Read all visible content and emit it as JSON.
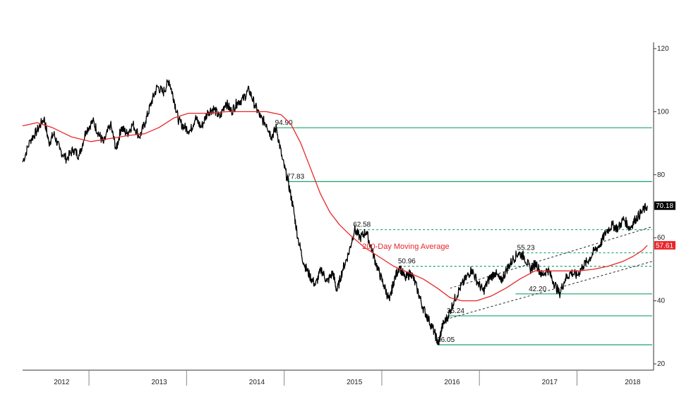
{
  "chart_data": {
    "type": "line",
    "title": "",
    "xlabel": "",
    "ylabel": "",
    "ylim": [
      18,
      122
    ],
    "y_ticks": [
      20,
      40,
      60,
      80,
      100,
      120
    ],
    "y_axis_side": "right",
    "grid": false,
    "x_range": [
      2011.8,
      2018.25
    ],
    "year_labels": [
      "2012",
      "2013",
      "2014",
      "2015",
      "2016",
      "2017",
      "2018"
    ],
    "year_label_positions": [
      2012.2,
      2013.2,
      2014.2,
      2015.2,
      2016.2,
      2017.2,
      2018.05
    ],
    "year_separators": [
      2012.48,
      2013.48,
      2014.48,
      2015.48,
      2016.48,
      2017.48
    ],
    "series": [
      {
        "kind": "price",
        "color": "#000000",
        "points": [
          [
            2011.8,
            84
          ],
          [
            2011.88,
            91
          ],
          [
            2011.95,
            94
          ],
          [
            2012.02,
            98
          ],
          [
            2012.07,
            90
          ],
          [
            2012.12,
            93
          ],
          [
            2012.18,
            88
          ],
          [
            2012.25,
            85
          ],
          [
            2012.32,
            88
          ],
          [
            2012.38,
            86
          ],
          [
            2012.45,
            94
          ],
          [
            2012.52,
            97
          ],
          [
            2012.58,
            93
          ],
          [
            2012.63,
            90
          ],
          [
            2012.7,
            96
          ],
          [
            2012.76,
            88
          ],
          [
            2012.81,
            95
          ],
          [
            2012.87,
            93
          ],
          [
            2012.93,
            96
          ],
          [
            2013.0,
            92
          ],
          [
            2013.06,
            97
          ],
          [
            2013.12,
            103
          ],
          [
            2013.18,
            108
          ],
          [
            2013.24,
            106
          ],
          [
            2013.3,
            110
          ],
          [
            2013.35,
            104
          ],
          [
            2013.4,
            97
          ],
          [
            2013.46,
            95
          ],
          [
            2013.52,
            94
          ],
          [
            2013.57,
            98
          ],
          [
            2013.63,
            95
          ],
          [
            2013.7,
            100
          ],
          [
            2013.76,
            101
          ],
          [
            2013.82,
            98
          ],
          [
            2013.88,
            103
          ],
          [
            2013.94,
            100
          ],
          [
            2014.0,
            103
          ],
          [
            2014.06,
            104
          ],
          [
            2014.12,
            107
          ],
          [
            2014.18,
            102
          ],
          [
            2014.24,
            98
          ],
          [
            2014.3,
            96
          ],
          [
            2014.35,
            92
          ],
          [
            2014.4,
            94.9
          ],
          [
            2014.46,
            85
          ],
          [
            2014.52,
            77.83
          ],
          [
            2014.57,
            70
          ],
          [
            2014.62,
            60
          ],
          [
            2014.68,
            52
          ],
          [
            2014.74,
            48
          ],
          [
            2014.8,
            45
          ],
          [
            2014.86,
            50
          ],
          [
            2014.92,
            46
          ],
          [
            2014.98,
            49
          ],
          [
            2015.02,
            43
          ],
          [
            2015.08,
            50
          ],
          [
            2015.14,
            55
          ],
          [
            2015.2,
            62.58
          ],
          [
            2015.26,
            60
          ],
          [
            2015.32,
            62
          ],
          [
            2015.38,
            56
          ],
          [
            2015.44,
            50
          ],
          [
            2015.5,
            45
          ],
          [
            2015.56,
            40
          ],
          [
            2015.6,
            46
          ],
          [
            2015.66,
            50.96
          ],
          [
            2015.72,
            47
          ],
          [
            2015.78,
            49
          ],
          [
            2015.84,
            44
          ],
          [
            2015.9,
            38
          ],
          [
            2015.96,
            34
          ],
          [
            2016.02,
            30
          ],
          [
            2016.06,
            26.05
          ],
          [
            2016.1,
            32
          ],
          [
            2016.16,
            35.24
          ],
          [
            2016.22,
            40
          ],
          [
            2016.28,
            44
          ],
          [
            2016.34,
            47
          ],
          [
            2016.4,
            50
          ],
          [
            2016.46,
            46
          ],
          [
            2016.52,
            43
          ],
          [
            2016.58,
            47
          ],
          [
            2016.64,
            49
          ],
          [
            2016.7,
            46
          ],
          [
            2016.76,
            50
          ],
          [
            2016.82,
            53
          ],
          [
            2016.88,
            55.23
          ],
          [
            2016.94,
            54
          ],
          [
            2017.0,
            50
          ],
          [
            2017.06,
            52
          ],
          [
            2017.12,
            48
          ],
          [
            2017.18,
            50
          ],
          [
            2017.24,
            46
          ],
          [
            2017.3,
            42.2
          ],
          [
            2017.36,
            47
          ],
          [
            2017.42,
            49
          ],
          [
            2017.48,
            48
          ],
          [
            2017.54,
            51
          ],
          [
            2017.6,
            53
          ],
          [
            2017.66,
            56
          ],
          [
            2017.72,
            58
          ],
          [
            2017.78,
            62
          ],
          [
            2017.84,
            64
          ],
          [
            2017.9,
            63
          ],
          [
            2017.96,
            66
          ],
          [
            2018.02,
            63
          ],
          [
            2018.08,
            66
          ],
          [
            2018.14,
            68
          ],
          [
            2018.2,
            70.18
          ]
        ]
      },
      {
        "kind": "moving-average",
        "color": "#e8262a",
        "points": [
          [
            2011.8,
            95.5
          ],
          [
            2011.95,
            96.5
          ],
          [
            2012.1,
            95
          ],
          [
            2012.3,
            92
          ],
          [
            2012.5,
            90.5
          ],
          [
            2012.7,
            91.5
          ],
          [
            2012.9,
            92.5
          ],
          [
            2013.05,
            93
          ],
          [
            2013.2,
            95
          ],
          [
            2013.35,
            98
          ],
          [
            2013.5,
            99.5
          ],
          [
            2013.7,
            99.5
          ],
          [
            2013.9,
            100
          ],
          [
            2014.1,
            100
          ],
          [
            2014.3,
            100
          ],
          [
            2014.45,
            99
          ],
          [
            2014.55,
            96
          ],
          [
            2014.65,
            90
          ],
          [
            2014.75,
            82
          ],
          [
            2014.85,
            74
          ],
          [
            2014.95,
            68
          ],
          [
            2015.05,
            64
          ],
          [
            2015.15,
            61
          ],
          [
            2015.3,
            57
          ],
          [
            2015.45,
            54
          ],
          [
            2015.6,
            51
          ],
          [
            2015.75,
            49
          ],
          [
            2015.9,
            47
          ],
          [
            2016.05,
            44
          ],
          [
            2016.18,
            41
          ],
          [
            2016.3,
            40
          ],
          [
            2016.45,
            40
          ],
          [
            2016.6,
            41.5
          ],
          [
            2016.75,
            44
          ],
          [
            2016.9,
            47
          ],
          [
            2017.05,
            49.5
          ],
          [
            2017.2,
            49.5
          ],
          [
            2017.35,
            49.5
          ],
          [
            2017.5,
            49.5
          ],
          [
            2017.65,
            50
          ],
          [
            2017.8,
            51
          ],
          [
            2017.95,
            52.5
          ],
          [
            2018.05,
            54
          ],
          [
            2018.15,
            56
          ],
          [
            2018.2,
            57.61
          ]
        ]
      }
    ],
    "levels": [
      {
        "value": 94.9,
        "label": "94.90",
        "label_x": 2014.4,
        "line_start": 2014.4,
        "style": "solid"
      },
      {
        "value": 77.83,
        "label": "77.83",
        "label_x": 2014.52,
        "line_start": 2014.52,
        "style": "solid"
      },
      {
        "value": 62.58,
        "label": "62.58",
        "label_x": 2015.2,
        "line_start": 2015.25,
        "style": "dashed"
      },
      {
        "value": 55.23,
        "label": "55.23",
        "label_x": 2016.88,
        "line_start": 2016.88,
        "style": "dashed"
      },
      {
        "value": 50.96,
        "label": "50.96",
        "label_x": 2015.66,
        "line_start": 2015.66,
        "style": "dashed"
      },
      {
        "value": 42.2,
        "label": "42.20",
        "label_x": 2017.0,
        "line_start": 2016.85,
        "style": "solid"
      },
      {
        "value": 35.24,
        "label": "35.24",
        "label_x": 2016.16,
        "line_start": 2016.16,
        "style": "solid"
      },
      {
        "value": 26.05,
        "label": "26.05",
        "label_x": 2016.06,
        "line_start": 2016.06,
        "style": "solid"
      }
    ],
    "level_color": "#1aa56a",
    "trend_channel": [
      {
        "from": [
          2016.18,
          44
        ],
        "to": [
          2018.25,
          63.5
        ]
      },
      {
        "from": [
          2016.18,
          34.5
        ],
        "to": [
          2018.25,
          52.5
        ]
      }
    ],
    "ma_annotation": {
      "text": "200-Day Moving Average",
      "color": "#e8262a",
      "x": 2015.28,
      "y": 56.5
    },
    "last_value_tags": [
      {
        "value": 70.18,
        "text": "70.18",
        "color": "#000000"
      },
      {
        "value": 57.61,
        "text": "57.61",
        "color": "#e8262a"
      }
    ]
  }
}
